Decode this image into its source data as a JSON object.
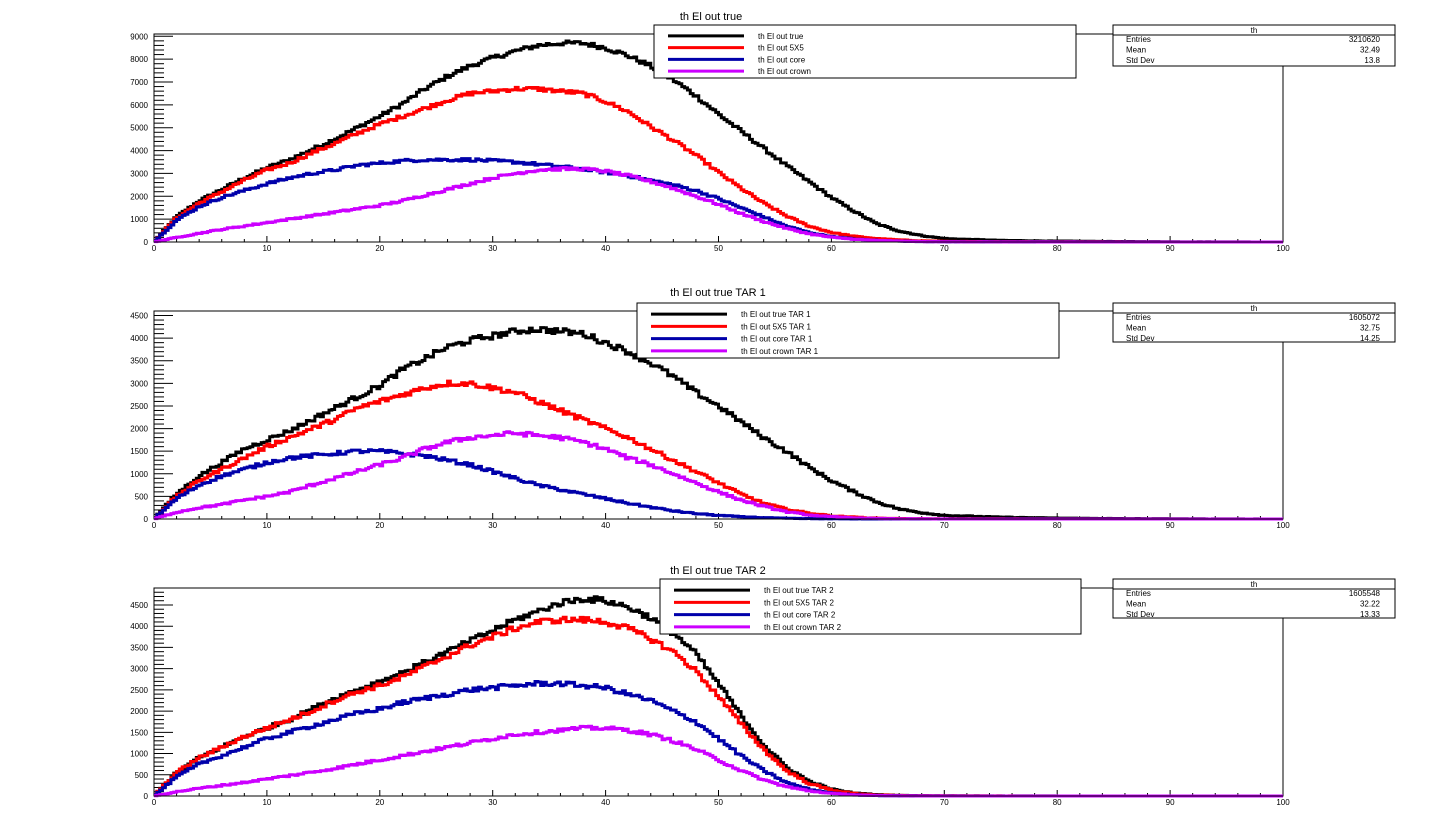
{
  "window": {
    "background": "#ffffff"
  },
  "chart_data": [
    {
      "type": "step-histogram",
      "title": "th El out true",
      "xlim": [
        0,
        100
      ],
      "ylim": [
        0,
        9100
      ],
      "xticks": [
        0,
        10,
        20,
        30,
        40,
        50,
        60,
        70,
        80,
        90,
        100
      ],
      "yticks": [
        0,
        1000,
        2000,
        3000,
        4000,
        5000,
        6000,
        7000,
        8000,
        9000
      ],
      "x": [
        0,
        2,
        4,
        6,
        8,
        10,
        12,
        14,
        16,
        18,
        20,
        22,
        24,
        26,
        28,
        30,
        32,
        34,
        36,
        38,
        40,
        42,
        44,
        46,
        48,
        50,
        52,
        54,
        56,
        58,
        60,
        62,
        64,
        66,
        68,
        70,
        75,
        80,
        85,
        90,
        95,
        100
      ],
      "series": [
        {
          "name": "th El out true",
          "color": "#000000",
          "values": [
            0,
            1100,
            1800,
            2300,
            2800,
            3250,
            3600,
            4050,
            4500,
            5000,
            5500,
            6050,
            6700,
            7250,
            7700,
            8050,
            8350,
            8600,
            8700,
            8700,
            8500,
            8150,
            7700,
            7100,
            6400,
            5600,
            4850,
            4100,
            3350,
            2650,
            1950,
            1350,
            800,
            480,
            280,
            150,
            70,
            40,
            20,
            10,
            5,
            0
          ]
        },
        {
          "name": "th El out 5X5",
          "color": "#ff0000",
          "values": [
            0,
            1050,
            1700,
            2200,
            2700,
            3150,
            3450,
            3900,
            4300,
            4750,
            5150,
            5500,
            5850,
            6200,
            6500,
            6600,
            6700,
            6700,
            6600,
            6500,
            6150,
            5700,
            5050,
            4450,
            3800,
            3050,
            2350,
            1700,
            1150,
            700,
            420,
            250,
            150,
            90,
            50,
            30,
            10,
            5,
            2,
            1,
            0,
            0
          ]
        },
        {
          "name": "th El out core",
          "color": "#0000aa",
          "values": [
            0,
            950,
            1550,
            1950,
            2250,
            2550,
            2800,
            3000,
            3150,
            3350,
            3450,
            3550,
            3600,
            3600,
            3600,
            3550,
            3500,
            3400,
            3300,
            3200,
            3050,
            2900,
            2700,
            2500,
            2250,
            1900,
            1500,
            1100,
            700,
            420,
            240,
            130,
            70,
            40,
            20,
            10,
            5,
            2,
            1,
            0,
            0,
            0
          ]
        },
        {
          "name": "th El out crown",
          "color": "#cc00ff",
          "values": [
            0,
            200,
            380,
            550,
            700,
            850,
            1000,
            1150,
            1300,
            1450,
            1600,
            1800,
            2050,
            2300,
            2550,
            2800,
            3000,
            3150,
            3200,
            3200,
            3100,
            2900,
            2650,
            2350,
            2000,
            1650,
            1250,
            900,
            600,
            360,
            210,
            120,
            70,
            40,
            20,
            10,
            5,
            2,
            1,
            0,
            0,
            0
          ]
        }
      ],
      "stats": {
        "title": "th",
        "entries_label": "Entries",
        "entries": "3210620",
        "mean_label": "Mean",
        "mean": "32.49",
        "std_label": "Std Dev",
        "std": "13.8"
      }
    },
    {
      "type": "step-histogram",
      "title": "th El out true TAR 1",
      "xlim": [
        0,
        100
      ],
      "ylim": [
        0,
        4600
      ],
      "xticks": [
        0,
        10,
        20,
        30,
        40,
        50,
        60,
        70,
        80,
        90,
        100
      ],
      "yticks": [
        0,
        500,
        1000,
        1500,
        2000,
        2500,
        3000,
        3500,
        4000,
        4500
      ],
      "x": [
        0,
        2,
        4,
        6,
        8,
        10,
        12,
        14,
        16,
        18,
        20,
        22,
        24,
        26,
        28,
        30,
        32,
        34,
        36,
        38,
        40,
        42,
        44,
        46,
        48,
        50,
        52,
        54,
        56,
        58,
        60,
        62,
        64,
        66,
        68,
        70,
        75,
        80,
        85,
        90,
        95,
        100
      ],
      "series": [
        {
          "name": "th El out true TAR 1",
          "color": "#000000",
          "values": [
            0,
            550,
            950,
            1250,
            1550,
            1750,
            1950,
            2200,
            2450,
            2700,
            2950,
            3300,
            3550,
            3800,
            3950,
            4050,
            4150,
            4200,
            4150,
            4100,
            3900,
            3700,
            3450,
            3150,
            2800,
            2500,
            2150,
            1800,
            1500,
            1150,
            850,
            600,
            380,
            220,
            140,
            80,
            40,
            20,
            10,
            5,
            2,
            0
          ]
        },
        {
          "name": "th El out 5X5 TAR 1",
          "color": "#ff0000",
          "values": [
            0,
            500,
            850,
            1100,
            1350,
            1600,
            1800,
            2000,
            2200,
            2450,
            2600,
            2750,
            2900,
            3000,
            3000,
            2900,
            2800,
            2600,
            2400,
            2200,
            2000,
            1800,
            1550,
            1300,
            1050,
            800,
            550,
            350,
            220,
            130,
            70,
            40,
            20,
            10,
            5,
            2,
            1,
            0,
            0,
            0,
            0,
            0
          ]
        },
        {
          "name": "th El out core TAR 1",
          "color": "#0000aa",
          "values": [
            0,
            450,
            750,
            950,
            1100,
            1250,
            1350,
            1400,
            1450,
            1500,
            1500,
            1450,
            1400,
            1300,
            1200,
            1050,
            900,
            750,
            650,
            550,
            450,
            350,
            260,
            180,
            120,
            80,
            50,
            30,
            15,
            8,
            4,
            2,
            1,
            0,
            0,
            0,
            0,
            0,
            0,
            0,
            0,
            0
          ]
        },
        {
          "name": "th El out crown TAR 1",
          "color": "#cc00ff",
          "values": [
            0,
            150,
            250,
            320,
            420,
            500,
            600,
            750,
            900,
            1050,
            1200,
            1350,
            1550,
            1700,
            1800,
            1850,
            1900,
            1850,
            1800,
            1700,
            1550,
            1350,
            1200,
            1000,
            800,
            600,
            420,
            280,
            160,
            90,
            50,
            25,
            12,
            6,
            3,
            1,
            0,
            0,
            0,
            0,
            0,
            0
          ]
        }
      ],
      "stats": {
        "title": "th",
        "entries_label": "Entries",
        "entries": "1605072",
        "mean_label": "Mean",
        "mean": "32.75",
        "std_label": "Std Dev",
        "std": "14.25"
      }
    },
    {
      "type": "step-histogram",
      "title": "th El out true TAR 2",
      "xlim": [
        0,
        100
      ],
      "ylim": [
        0,
        4900
      ],
      "xticks": [
        0,
        10,
        20,
        30,
        40,
        50,
        60,
        70,
        80,
        90,
        100
      ],
      "yticks": [
        0,
        500,
        1000,
        1500,
        2000,
        2500,
        3000,
        3500,
        4000,
        4500
      ],
      "x": [
        0,
        2,
        4,
        6,
        8,
        10,
        12,
        14,
        16,
        18,
        20,
        22,
        24,
        26,
        28,
        30,
        32,
        34,
        36,
        38,
        40,
        42,
        44,
        46,
        48,
        50,
        52,
        54,
        56,
        58,
        60,
        62,
        64,
        66,
        68,
        70,
        75,
        80,
        85,
        90,
        95,
        100
      ],
      "series": [
        {
          "name": "th El out true TAR 2",
          "color": "#000000",
          "values": [
            0,
            550,
            900,
            1150,
            1400,
            1600,
            1800,
            2050,
            2300,
            2500,
            2700,
            2900,
            3150,
            3400,
            3650,
            3900,
            4150,
            4350,
            4550,
            4650,
            4600,
            4450,
            4200,
            3850,
            3350,
            2650,
            1900,
            1200,
            680,
            350,
            160,
            70,
            30,
            15,
            8,
            4,
            2,
            1,
            0,
            0,
            0,
            0
          ]
        },
        {
          "name": "th El out 5X5 TAR 2",
          "color": "#ff0000",
          "values": [
            0,
            550,
            900,
            1150,
            1400,
            1600,
            1800,
            2000,
            2250,
            2450,
            2600,
            2800,
            3050,
            3300,
            3550,
            3750,
            3950,
            4100,
            4150,
            4150,
            4100,
            3950,
            3700,
            3400,
            2950,
            2350,
            1700,
            1100,
            600,
            300,
            140,
            60,
            25,
            12,
            6,
            3,
            1,
            0,
            0,
            0,
            0,
            0
          ]
        },
        {
          "name": "th El out core TAR 2",
          "color": "#0000aa",
          "values": [
            0,
            450,
            750,
            950,
            1150,
            1350,
            1500,
            1650,
            1800,
            1950,
            2050,
            2200,
            2300,
            2400,
            2500,
            2550,
            2600,
            2650,
            2650,
            2600,
            2550,
            2400,
            2250,
            2000,
            1750,
            1350,
            950,
            600,
            320,
            160,
            70,
            30,
            12,
            5,
            2,
            1,
            0,
            0,
            0,
            0,
            0,
            0
          ]
        },
        {
          "name": "th El out crown TAR 2",
          "color": "#cc00ff",
          "values": [
            0,
            100,
            180,
            250,
            320,
            400,
            480,
            560,
            650,
            750,
            850,
            950,
            1050,
            1150,
            1250,
            1350,
            1450,
            1500,
            1550,
            1600,
            1600,
            1550,
            1450,
            1300,
            1100,
            850,
            600,
            380,
            220,
            120,
            60,
            25,
            10,
            4,
            2,
            1,
            0,
            0,
            0,
            0,
            0,
            0
          ]
        }
      ],
      "stats": {
        "title": "th",
        "entries_label": "Entries",
        "entries": "1605548",
        "mean_label": "Mean",
        "mean": "32.22",
        "std_label": "Std Dev",
        "std": "13.33"
      }
    }
  ]
}
